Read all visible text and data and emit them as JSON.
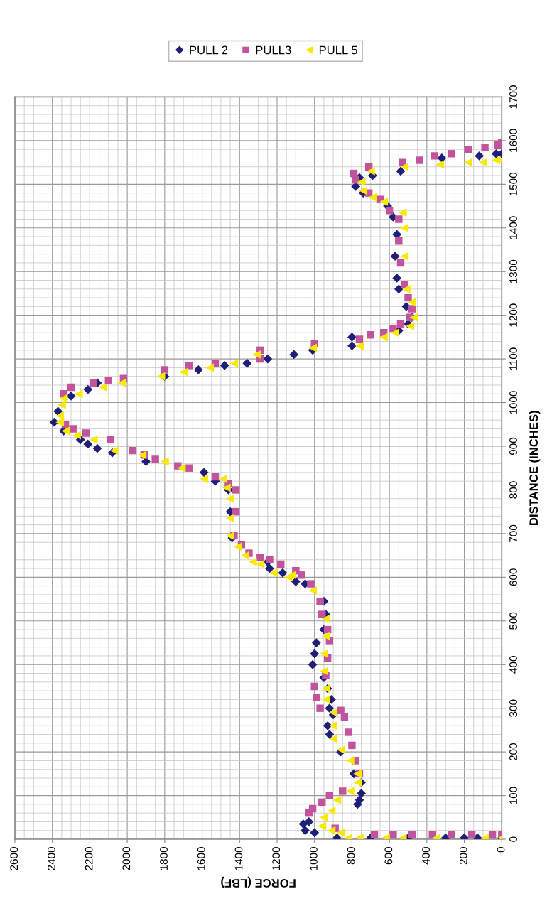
{
  "chart_data": {
    "type": "scatter",
    "xlabel": "FORCE (LBF)",
    "ylabel": "DISTANCE (INCHES)",
    "xlim": [
      2600,
      0
    ],
    "ylim": [
      0,
      1700
    ],
    "xticks": [
      2600,
      2400,
      2200,
      2000,
      1800,
      1600,
      1400,
      1200,
      1000,
      800,
      600,
      400,
      200,
      0
    ],
    "yticks": [
      0,
      100,
      200,
      300,
      400,
      500,
      600,
      700,
      800,
      900,
      1000,
      1100,
      1200,
      1300,
      1400,
      1500,
      1600,
      1700
    ],
    "grid": true,
    "legend": "top",
    "series": [
      {
        "name": "PULL 2",
        "color": "#1f1f78",
        "marker": "diamond",
        "x": [
          0,
          130,
          200,
          300,
          500,
          700,
          880,
          1000,
          1050,
          1060,
          1030,
          770,
          760,
          750,
          750,
          790,
          860,
          920,
          930,
          900,
          920,
          910,
          930,
          950,
          1010,
          1000,
          990,
          950,
          940,
          950,
          1050,
          1100,
          1170,
          1240,
          1250,
          1440,
          1450,
          1460,
          1530,
          1590,
          1900,
          2080,
          2160,
          2210,
          2250,
          2340,
          2390,
          2370,
          2300,
          2210,
          2160,
          1800,
          1620,
          1480,
          1360,
          1250,
          1110,
          1010,
          800,
          800,
          550,
          500,
          480,
          510,
          550,
          560,
          570,
          560,
          580,
          610,
          740,
          780,
          760,
          690,
          540,
          320,
          120,
          30,
          0
        ],
        "values": [
          3,
          3,
          3,
          3,
          3,
          3,
          3,
          15,
          20,
          35,
          40,
          80,
          90,
          105,
          130,
          150,
          200,
          240,
          260,
          285,
          300,
          320,
          345,
          370,
          400,
          425,
          450,
          480,
          515,
          545,
          585,
          590,
          610,
          620,
          635,
          690,
          750,
          800,
          820,
          840,
          865,
          885,
          895,
          905,
          915,
          935,
          955,
          980,
          1015,
          1030,
          1045,
          1060,
          1075,
          1085,
          1090,
          1100,
          1110,
          1120,
          1130,
          1150,
          1165,
          1180,
          1195,
          1220,
          1260,
          1285,
          1335,
          1385,
          1425,
          1450,
          1480,
          1495,
          1515,
          1520,
          1530,
          1560,
          1565,
          1570,
          1570
        ]
      },
      {
        "name": "PULL3",
        "color": "#c2549e",
        "marker": "square",
        "x": [
          0,
          50,
          160,
          270,
          370,
          480,
          580,
          680,
          890,
          1030,
          1010,
          960,
          920,
          850,
          760,
          780,
          800,
          820,
          840,
          860,
          970,
          990,
          1000,
          940,
          930,
          920,
          930,
          960,
          970,
          1020,
          1070,
          1100,
          1180,
          1240,
          1290,
          1350,
          1390,
          1430,
          1420,
          1420,
          1460,
          1530,
          1670,
          1730,
          1850,
          1910,
          1970,
          2090,
          2220,
          2290,
          2330,
          2340,
          2300,
          2180,
          2100,
          2020,
          1800,
          1670,
          1530,
          1290,
          1290,
          1000,
          760,
          700,
          630,
          580,
          540,
          490,
          480,
          500,
          520,
          540,
          550,
          550,
          600,
          650,
          710,
          780,
          790,
          710,
          530,
          440,
          360,
          270,
          180,
          90,
          20,
          0
        ],
        "values": [
          10,
          10,
          10,
          10,
          10,
          10,
          10,
          10,
          25,
          60,
          70,
          85,
          100,
          110,
          150,
          180,
          215,
          245,
          280,
          295,
          300,
          325,
          350,
          375,
          415,
          455,
          480,
          515,
          545,
          585,
          605,
          615,
          630,
          640,
          645,
          655,
          675,
          695,
          750,
          800,
          815,
          830,
          850,
          855,
          870,
          880,
          890,
          915,
          930,
          940,
          950,
          1020,
          1035,
          1045,
          1050,
          1055,
          1075,
          1085,
          1090,
          1100,
          1120,
          1135,
          1145,
          1155,
          1160,
          1170,
          1180,
          1195,
          1215,
          1240,
          1270,
          1320,
          1370,
          1420,
          1440,
          1465,
          1480,
          1510,
          1525,
          1540,
          1550,
          1555,
          1565,
          1570,
          1580,
          1585,
          1590,
          1595
        ]
      },
      {
        "name": "PULL 5",
        "color": "#f7ea00",
        "marker": "triangle",
        "x": [
          0,
          90,
          350,
          530,
          620,
          760,
          820,
          860,
          910,
          960,
          950,
          910,
          880,
          810,
          770,
          770,
          810,
          860,
          900,
          900,
          900,
          940,
          940,
          950,
          950,
          940,
          940,
          1010,
          1120,
          1140,
          1220,
          1290,
          1330,
          1370,
          1410,
          1450,
          1450,
          1450,
          1470,
          1490,
          1590,
          1710,
          1800,
          1920,
          2070,
          2180,
          2270,
          2330,
          2360,
          2360,
          2350,
          2340,
          2260,
          2130,
          2030,
          1820,
          1700,
          1560,
          1430,
          1310,
          1010,
          760,
          630,
          570,
          490,
          470,
          480,
          510,
          520,
          520,
          530,
          630,
          690,
          740,
          750,
          700,
          520,
          330,
          180,
          100,
          30,
          0
        ],
        "values": [
          3,
          3,
          3,
          3,
          3,
          3,
          3,
          15,
          20,
          30,
          50,
          65,
          90,
          110,
          130,
          150,
          180,
          205,
          230,
          260,
          290,
          320,
          345,
          385,
          425,
          465,
          505,
          570,
          605,
          600,
          610,
          630,
          635,
          650,
          670,
          695,
          735,
          780,
          805,
          825,
          825,
          850,
          865,
          880,
          890,
          915,
          925,
          935,
          955,
          970,
          995,
          1010,
          1020,
          1035,
          1045,
          1060,
          1070,
          1080,
          1090,
          1110,
          1125,
          1130,
          1150,
          1160,
          1175,
          1195,
          1230,
          1260,
          1335,
          1400,
          1435,
          1460,
          1470,
          1485,
          1505,
          1530,
          1540,
          1545,
          1550,
          1550,
          1555,
          1555
        ]
      }
    ]
  }
}
